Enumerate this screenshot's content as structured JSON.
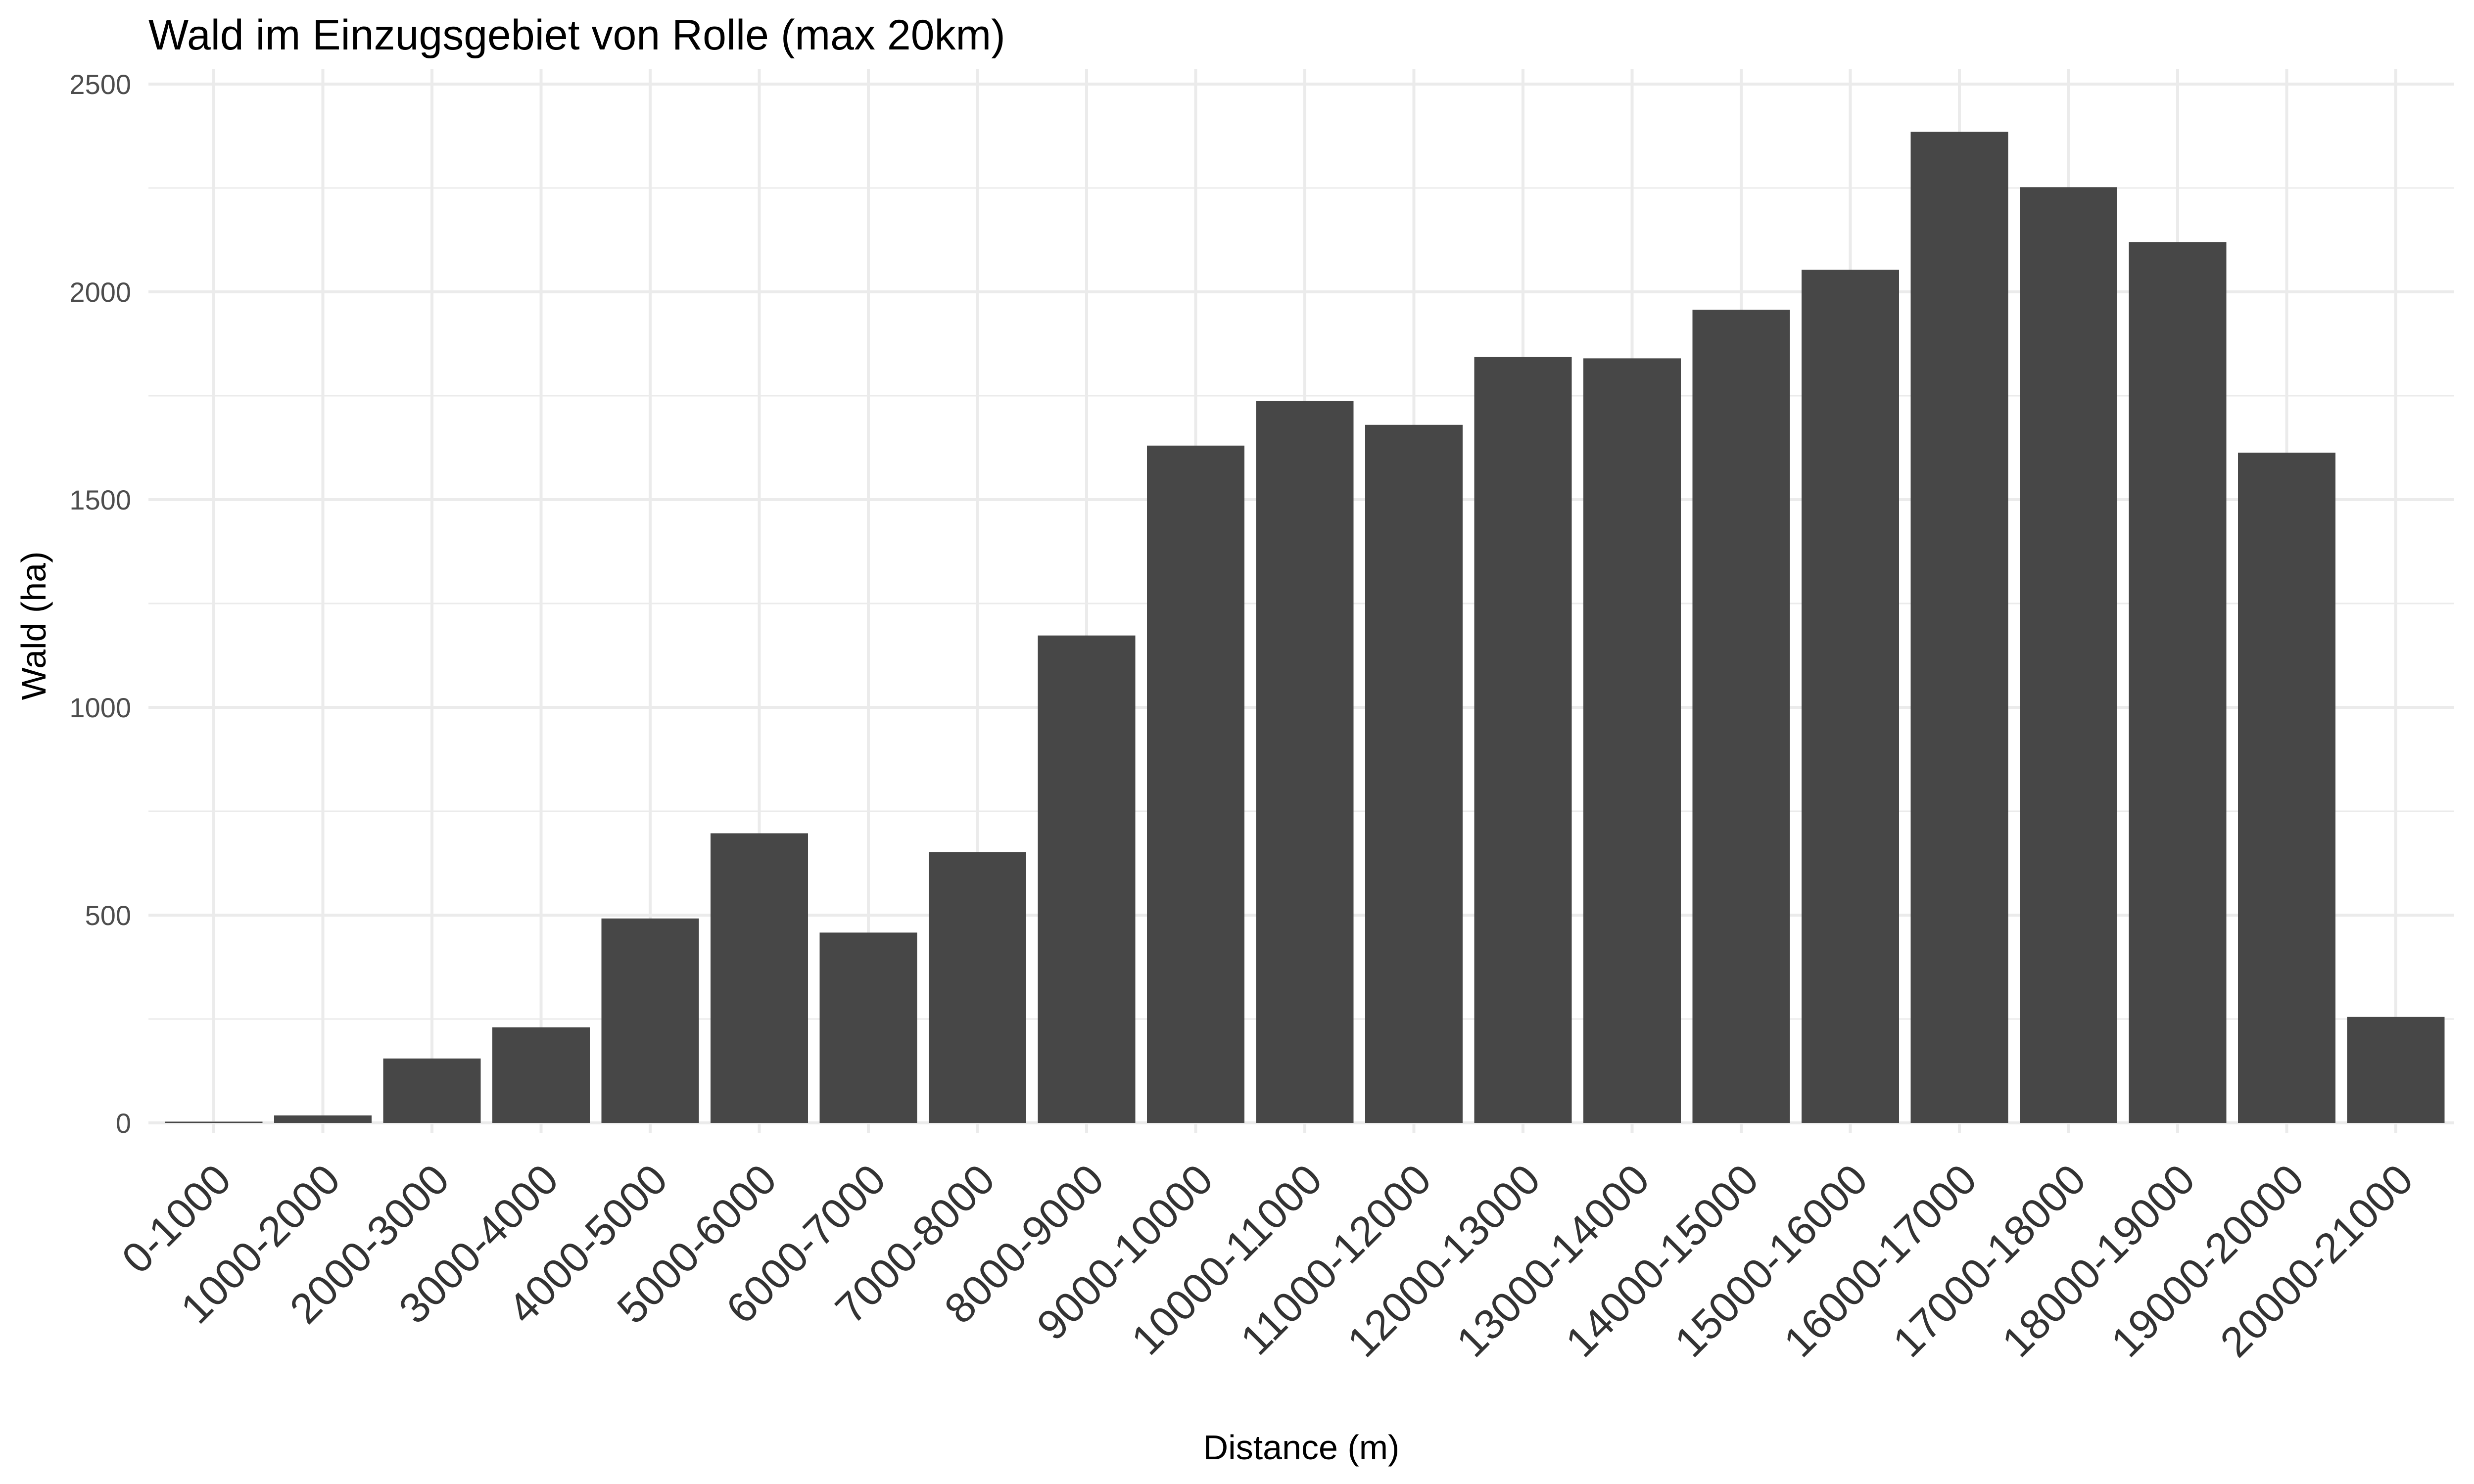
{
  "chart_data": {
    "type": "bar",
    "title": "Wald im Einzugsgebiet von Rolle (max 20km)",
    "xlabel": "Distance (m)",
    "ylabel": "Wald (ha)",
    "ylim": [
      0,
      2500
    ],
    "yticks": [
      0,
      500,
      1000,
      1500,
      2000,
      2500
    ],
    "yticks_minor": [
      250,
      750,
      1250,
      1750,
      2250
    ],
    "grid": true,
    "legend": "none",
    "bar_color": "#474747",
    "grid_color": "#ebebeb",
    "categories": [
      "0-1000",
      "1000-2000",
      "2000-3000",
      "3000-4000",
      "4000-5000",
      "5000-6000",
      "6000-7000",
      "7000-8000",
      "8000-9000",
      "9000-10000",
      "10000-11000",
      "11000-12000",
      "12000-13000",
      "13000-14000",
      "14000-15000",
      "15000-16000",
      "16000-17000",
      "17000-18000",
      "18000-19000",
      "19000-20000",
      "20000-21000"
    ],
    "values": [
      3,
      18,
      155,
      230,
      492,
      697,
      458,
      652,
      1173,
      1630,
      1737,
      1680,
      1843,
      1840,
      1957,
      2053,
      2385,
      2252,
      2120,
      1613,
      255
    ]
  }
}
